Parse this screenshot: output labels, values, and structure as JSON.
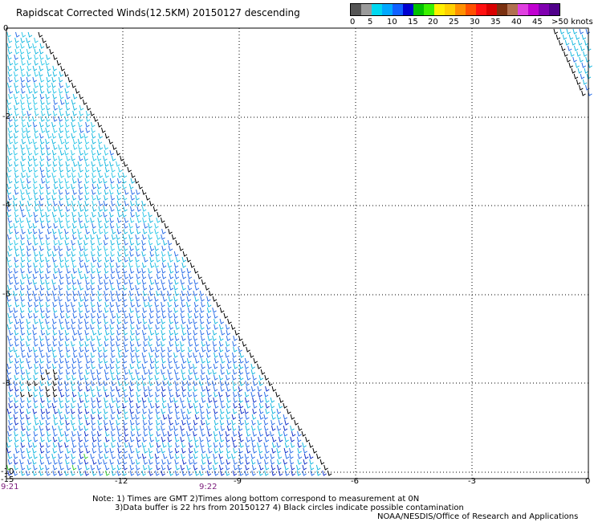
{
  "title": "Rapidscat Corrected Winds(12.5KM) 20150127 descending",
  "legend": {
    "labels": [
      "0",
      "5",
      "10",
      "15",
      "20",
      "25",
      "30",
      "35",
      "40",
      "45",
      ">50 knots"
    ],
    "colors": [
      "#555555",
      "#9a9a9a",
      "#00d8f0",
      "#00a8ff",
      "#1060ff",
      "#0000d0",
      "#00c000",
      "#3af000",
      "#fff000",
      "#ffd000",
      "#ff9000",
      "#ff5000",
      "#ff1010",
      "#d80000",
      "#7a3010",
      "#b07050",
      "#e040e0",
      "#c000d0",
      "#8000b0",
      "#50008a"
    ]
  },
  "map": {
    "lat_ticks": [
      "0",
      "-2",
      "-4",
      "-6",
      "-8",
      "-10"
    ],
    "lon_ticks": [
      "-15",
      "-12",
      "-9",
      "-6",
      "-3",
      "0"
    ],
    "time_labels": [
      "9:21",
      "9:22"
    ]
  },
  "notes": [
    "Note: 1) Times are GMT 2)Times along bottom correspond to measurement at 0N",
    "3)Data buffer is 22 hrs from 20150127 4) Black circles indicate possible contamination"
  ],
  "credit": "NOAA/NESDIS/Office of Research and Applications"
}
